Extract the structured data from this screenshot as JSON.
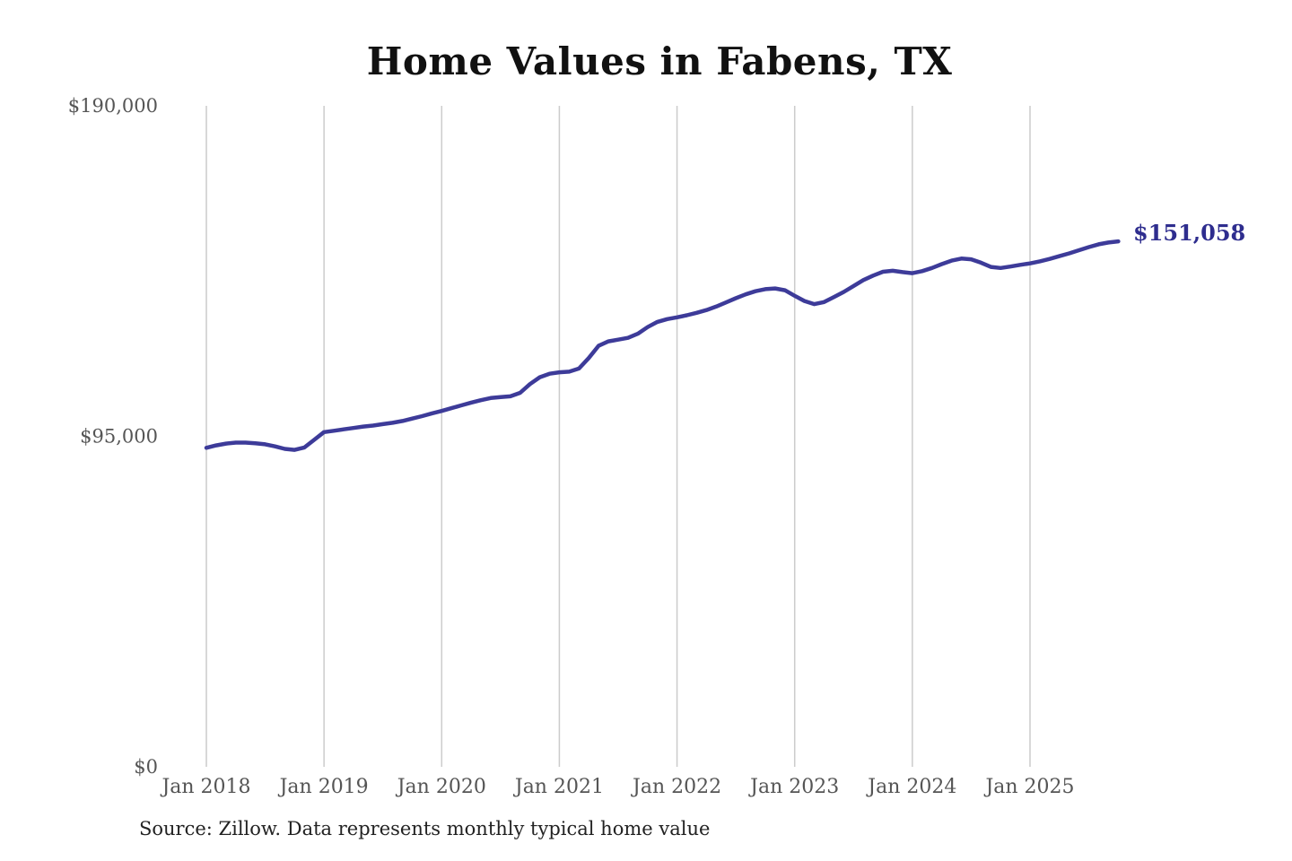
{
  "chart": {
    "title": "Home Values in Fabens, TX",
    "end_label": "$151,058",
    "source_note": "Source: Zillow. Data represents monthly typical home value",
    "line_color": "#3d3b99",
    "end_label_color": "#2e2d8e",
    "grid_color": "#cccccc",
    "tick_color": "#555555"
  },
  "chart_data": {
    "type": "line",
    "title": "Home Values in Fabens, TX",
    "xlabel": "",
    "ylabel": "",
    "x_unit": "month",
    "x_start": "Jan 2018",
    "x_end": "Oct 2025",
    "xticks": [
      "Jan 2018",
      "Jan 2019",
      "Jan 2020",
      "Jan 2021",
      "Jan 2022",
      "Jan 2023",
      "Jan 2024",
      "Jan 2025"
    ],
    "xtick_interval_months": 12,
    "yticks": [
      {
        "label": "$190,000",
        "value": 190000
      },
      {
        "label": "$95,000",
        "value": 95000
      },
      {
        "label": "$0",
        "value": 0
      }
    ],
    "ylim": [
      0,
      190000
    ],
    "grid": "vertical-only",
    "legend": "none",
    "final_value": 151058,
    "final_value_label": "$151,058",
    "series": [
      {
        "name": "Monthly typical home value",
        "values": [
          91700,
          92400,
          92900,
          93200,
          93200,
          93000,
          92700,
          92100,
          91400,
          91100,
          91800,
          94000,
          96200,
          96600,
          97000,
          97400,
          97800,
          98100,
          98500,
          98900,
          99400,
          100100,
          100800,
          101600,
          102300,
          103100,
          103900,
          104700,
          105400,
          106000,
          106300,
          106500,
          107500,
          110000,
          112000,
          113000,
          113400,
          113600,
          114500,
          117500,
          121000,
          122300,
          122800,
          123300,
          124500,
          126400,
          127900,
          128700,
          129200,
          129800,
          130500,
          131300,
          132300,
          133500,
          134700,
          135800,
          136700,
          137300,
          137500,
          137000,
          135400,
          133900,
          133000,
          133600,
          135000,
          136500,
          138200,
          139900,
          141200,
          142300,
          142600,
          142200,
          141900,
          142500,
          143400,
          144500,
          145500,
          146100,
          145900,
          144900,
          143700,
          143400,
          143800,
          144300,
          144700,
          145300,
          146000,
          146800,
          147600,
          148500,
          149400,
          150200,
          150700,
          151058
        ]
      }
    ]
  }
}
